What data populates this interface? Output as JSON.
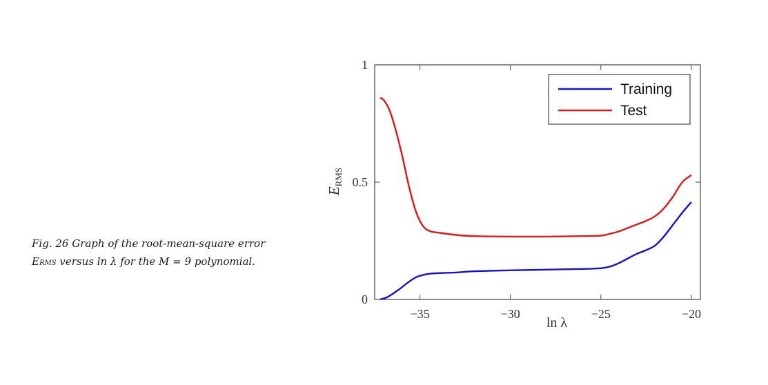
{
  "caption": {
    "part1": "Fig. 26 Graph of the root-mean-square error E",
    "sub": "RMS",
    "part2": " versus ln λ for the M = 9 polynomial."
  },
  "chart_data": {
    "type": "line",
    "xlabel": "ln λ",
    "ylabel_main": "E",
    "ylabel_sub": "RMS",
    "xlim": [
      -37.5,
      -19.5
    ],
    "ylim": [
      0,
      1
    ],
    "xticks": [
      -35,
      -30,
      -25,
      -20
    ],
    "xtick_labels": [
      "−35",
      "−30",
      "−25",
      "−20"
    ],
    "yticks": [
      0,
      0.5,
      1
    ],
    "ytick_labels": [
      "0",
      "0.5",
      "1"
    ],
    "grid": false,
    "legend_position": "top-right",
    "series": [
      {
        "name": "Training",
        "color": "#1010d8",
        "x": [
          -37.2,
          -36.8,
          -36.2,
          -35.7,
          -35.2,
          -34.6,
          -34.0,
          -33.0,
          -32.0,
          -30.0,
          -28.0,
          -26.0,
          -25.0,
          -24.5,
          -24.0,
          -23.5,
          -23.0,
          -22.5,
          -22.0,
          -21.5,
          -21.0,
          -20.5,
          -20.0
        ],
        "y": [
          0.0,
          0.01,
          0.04,
          0.07,
          0.095,
          0.108,
          0.112,
          0.115,
          0.12,
          0.124,
          0.127,
          0.13,
          0.133,
          0.14,
          0.155,
          0.175,
          0.195,
          0.21,
          0.23,
          0.27,
          0.32,
          0.37,
          0.415
        ]
      },
      {
        "name": "Test",
        "color": "#e01818",
        "x": [
          -37.2,
          -37.0,
          -36.7,
          -36.4,
          -36.0,
          -35.6,
          -35.2,
          -34.8,
          -34.4,
          -34.0,
          -33.0,
          -32.0,
          -30.0,
          -28.0,
          -26.0,
          -25.0,
          -24.5,
          -24.0,
          -23.5,
          -23.0,
          -22.5,
          -22.0,
          -21.5,
          -21.0,
          -20.5,
          -20.0
        ],
        "y": [
          0.86,
          0.85,
          0.81,
          0.74,
          0.62,
          0.48,
          0.37,
          0.31,
          0.29,
          0.285,
          0.275,
          0.27,
          0.268,
          0.268,
          0.27,
          0.272,
          0.28,
          0.29,
          0.305,
          0.32,
          0.335,
          0.355,
          0.39,
          0.44,
          0.5,
          0.53
        ]
      }
    ]
  }
}
